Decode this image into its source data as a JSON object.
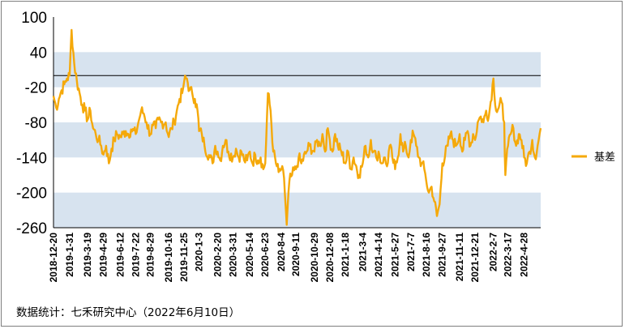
{
  "chart_data": {
    "type": "line",
    "series": [
      {
        "name": "基差",
        "color": "#F5A90A",
        "anchors": [
          [
            "2018-12-20",
            -35
          ],
          [
            "2018-12-27",
            -55
          ],
          [
            "2019-01-03",
            -40
          ],
          [
            "2019-01-10",
            -25
          ],
          [
            "2019-01-17",
            -15
          ],
          [
            "2019-01-24",
            -5
          ],
          [
            "2019-01-31",
            0
          ],
          [
            "2019-02-05",
            78
          ],
          [
            "2019-02-12",
            20
          ],
          [
            "2019-02-19",
            -10
          ],
          [
            "2019-02-26",
            -30
          ],
          [
            "2019-03-05",
            -50
          ],
          [
            "2019-03-12",
            -60
          ],
          [
            "2019-03-19",
            -75
          ],
          [
            "2019-03-26",
            -60
          ],
          [
            "2019-04-02",
            -90
          ],
          [
            "2019-04-09",
            -100
          ],
          [
            "2019-04-16",
            -110
          ],
          [
            "2019-04-23",
            -120
          ],
          [
            "2019-04-29",
            -135
          ],
          [
            "2019-05-06",
            -120
          ],
          [
            "2019-05-13",
            -150
          ],
          [
            "2019-05-20",
            -125
          ],
          [
            "2019-05-27",
            -110
          ],
          [
            "2019-06-03",
            -100
          ],
          [
            "2019-06-12",
            -105
          ],
          [
            "2019-06-19",
            -100
          ],
          [
            "2019-06-26",
            -95
          ],
          [
            "2019-07-03",
            -100
          ],
          [
            "2019-07-10",
            -92
          ],
          [
            "2019-07-22",
            -100
          ],
          [
            "2019-07-29",
            -80
          ],
          [
            "2019-08-05",
            -60
          ],
          [
            "2019-08-12",
            -65
          ],
          [
            "2019-08-19",
            -80
          ],
          [
            "2019-08-29",
            -100
          ],
          [
            "2019-09-05",
            -85
          ],
          [
            "2019-09-12",
            -90
          ],
          [
            "2019-09-19",
            -75
          ],
          [
            "2019-09-26",
            -80
          ],
          [
            "2019-10-08",
            -80
          ],
          [
            "2019-10-16",
            -105
          ],
          [
            "2019-10-23",
            -90
          ],
          [
            "2019-10-30",
            -80
          ],
          [
            "2019-11-06",
            -60
          ],
          [
            "2019-11-13",
            -40
          ],
          [
            "2019-11-20",
            -30
          ],
          [
            "2019-11-25",
            -10
          ],
          [
            "2019-12-02",
            -5
          ],
          [
            "2019-12-09",
            -25
          ],
          [
            "2019-12-16",
            -30
          ],
          [
            "2019-12-23",
            -40
          ],
          [
            "2019-12-30",
            -60
          ],
          [
            "2020-01-03",
            -95
          ],
          [
            "2020-01-10",
            -100
          ],
          [
            "2020-01-17",
            -120
          ],
          [
            "2020-01-31",
            -140
          ],
          [
            "2020-02-07",
            -150
          ],
          [
            "2020-02-14",
            -120
          ],
          [
            "2020-02-20",
            -130
          ],
          [
            "2020-02-27",
            -145
          ],
          [
            "2020-03-05",
            -120
          ],
          [
            "2020-03-12",
            -110
          ],
          [
            "2020-03-19",
            -130
          ],
          [
            "2020-03-31",
            -140
          ],
          [
            "2020-04-08",
            -125
          ],
          [
            "2020-04-15",
            -140
          ],
          [
            "2020-04-22",
            -130
          ],
          [
            "2020-04-29",
            -145
          ],
          [
            "2020-05-07",
            -145
          ],
          [
            "2020-05-14",
            -130
          ],
          [
            "2020-05-21",
            -150
          ],
          [
            "2020-05-28",
            -135
          ],
          [
            "2020-06-04",
            -145
          ],
          [
            "2020-06-11",
            -140
          ],
          [
            "2020-06-18",
            -160
          ],
          [
            "2020-06-23",
            -150
          ],
          [
            "2020-06-30",
            -30
          ],
          [
            "2020-07-07",
            -60
          ],
          [
            "2020-07-14",
            -130
          ],
          [
            "2020-07-21",
            -150
          ],
          [
            "2020-07-28",
            -165
          ],
          [
            "2020-08-04",
            -160
          ],
          [
            "2020-08-11",
            -175
          ],
          [
            "2020-08-18",
            -255
          ],
          [
            "2020-08-25",
            -180
          ],
          [
            "2020-09-01",
            -170
          ],
          [
            "2020-09-11",
            -160
          ],
          [
            "2020-09-18",
            -140
          ],
          [
            "2020-09-25",
            -150
          ],
          [
            "2020-10-09",
            -130
          ],
          [
            "2020-10-16",
            -120
          ],
          [
            "2020-10-29",
            -130
          ],
          [
            "2020-11-05",
            -110
          ],
          [
            "2020-11-12",
            -120
          ],
          [
            "2020-11-19",
            -100
          ],
          [
            "2020-11-26",
            -130
          ],
          [
            "2020-12-03",
            -90
          ],
          [
            "2020-12-08",
            -110
          ],
          [
            "2020-12-15",
            -130
          ],
          [
            "2020-12-22",
            -100
          ],
          [
            "2020-12-29",
            -120
          ],
          [
            "2021-01-07",
            -130
          ],
          [
            "2021-01-18",
            -150
          ],
          [
            "2021-01-25",
            -130
          ],
          [
            "2021-02-01",
            -160
          ],
          [
            "2021-02-08",
            -140
          ],
          [
            "2021-02-22",
            -170
          ],
          [
            "2021-03-04",
            -150
          ],
          [
            "2021-03-11",
            -120
          ],
          [
            "2021-03-18",
            -140
          ],
          [
            "2021-03-25",
            -110
          ],
          [
            "2021-04-01",
            -130
          ],
          [
            "2021-04-08",
            -140
          ],
          [
            "2021-04-14",
            -130
          ],
          [
            "2021-04-21",
            -150
          ],
          [
            "2021-04-28",
            -140
          ],
          [
            "2021-05-06",
            -155
          ],
          [
            "2021-05-13",
            -120
          ],
          [
            "2021-05-20",
            -140
          ],
          [
            "2021-05-27",
            -160
          ],
          [
            "2021-06-03",
            -140
          ],
          [
            "2021-06-10",
            -100
          ],
          [
            "2021-06-17",
            -130
          ],
          [
            "2021-06-24",
            -120
          ],
          [
            "2021-07-01",
            -140
          ],
          [
            "2021-07-07",
            -110
          ],
          [
            "2021-07-14",
            -100
          ],
          [
            "2021-07-21",
            -120
          ],
          [
            "2021-07-28",
            -140
          ],
          [
            "2021-08-04",
            -150
          ],
          [
            "2021-08-11",
            -160
          ],
          [
            "2021-08-16",
            -180
          ],
          [
            "2021-08-23",
            -200
          ],
          [
            "2021-08-30",
            -190
          ],
          [
            "2021-09-06",
            -215
          ],
          [
            "2021-09-13",
            -240
          ],
          [
            "2021-09-20",
            -220
          ],
          [
            "2021-09-27",
            -150
          ],
          [
            "2021-10-11",
            -120
          ],
          [
            "2021-10-18",
            -100
          ],
          [
            "2021-10-25",
            -110
          ],
          [
            "2021-11-01",
            -120
          ],
          [
            "2021-11-11",
            -100
          ],
          [
            "2021-11-18",
            -130
          ],
          [
            "2021-11-25",
            -110
          ],
          [
            "2021-12-02",
            -95
          ],
          [
            "2021-12-09",
            -120
          ],
          [
            "2021-12-16",
            -100
          ],
          [
            "2021-12-21",
            -110
          ],
          [
            "2021-12-28",
            -80
          ],
          [
            "2022-01-05",
            -70
          ],
          [
            "2022-01-12",
            -80
          ],
          [
            "2022-01-19",
            -60
          ],
          [
            "2022-01-26",
            -70
          ],
          [
            "2022-02-07",
            -5
          ],
          [
            "2022-02-14",
            -60
          ],
          [
            "2022-02-21",
            -55
          ],
          [
            "2022-02-28",
            -45
          ],
          [
            "2022-03-07",
            -80
          ],
          [
            "2022-03-10",
            -170
          ],
          [
            "2022-03-17",
            -120
          ],
          [
            "2022-03-24",
            -100
          ],
          [
            "2022-03-31",
            -90
          ],
          [
            "2022-04-07",
            -120
          ],
          [
            "2022-04-14",
            -100
          ],
          [
            "2022-04-21",
            -110
          ],
          [
            "2022-04-28",
            -140
          ],
          [
            "2022-05-05",
            -150
          ],
          [
            "2022-05-12",
            -130
          ],
          [
            "2022-05-19",
            -110
          ],
          [
            "2022-05-26",
            -140
          ],
          [
            "2022-06-02",
            -120
          ],
          [
            "2022-06-10",
            -90
          ]
        ]
      }
    ],
    "x_tick_labels": [
      "2018-12-20",
      "2019-1-31",
      "2019-3-19",
      "2019-4-29",
      "2019-6-12",
      "2019-7-22",
      "2019-8-29",
      "2019-10-16",
      "2019-11-25",
      "2020-1-3",
      "2020-2-20",
      "2020-3-31",
      "2020-5-14",
      "2020-6-23",
      "2020-8-4",
      "2020-9-11",
      "2020-10-29",
      "2020-12-08",
      "2021-1-18",
      "2021-3-4",
      "2021-4-14",
      "2021-5-27",
      "2021-7-7",
      "2021-8-16",
      "2021-9-27",
      "2021-11-11",
      "2021-12-21",
      "2022-2-7",
      "2022-3-17",
      "2022-4-28"
    ],
    "x_tick_dates": [
      "2018-12-20",
      "2019-01-31",
      "2019-03-19",
      "2019-04-29",
      "2019-06-12",
      "2019-07-22",
      "2019-08-29",
      "2019-10-16",
      "2019-11-25",
      "2020-01-03",
      "2020-02-20",
      "2020-03-31",
      "2020-05-14",
      "2020-06-23",
      "2020-08-04",
      "2020-09-11",
      "2020-10-29",
      "2020-12-08",
      "2021-01-18",
      "2021-03-04",
      "2021-04-14",
      "2021-05-27",
      "2021-07-07",
      "2021-08-16",
      "2021-09-27",
      "2021-11-11",
      "2021-12-21",
      "2022-02-07",
      "2022-03-17",
      "2022-04-28"
    ],
    "x_range": [
      "2018-12-20",
      "2022-06-10"
    ],
    "y_ticks": [
      100,
      40,
      -20,
      -80,
      -140,
      -200,
      -260
    ],
    "ylim": [
      -260,
      100
    ],
    "y_tick_labels": [
      "100",
      "40",
      "-20",
      "-80",
      "-140",
      "-200",
      "-260"
    ],
    "bands": [
      [
        -20,
        40
      ],
      [
        -140,
        -80
      ],
      [
        -260,
        -200
      ]
    ],
    "band_color": "#D7E3EF",
    "reference_line": 0,
    "reference_line_color": "#000000",
    "legend": {
      "position": "right",
      "label": "基差"
    },
    "title": "",
    "xlabel": "",
    "ylabel": ""
  },
  "source_note": "数据统计：七禾研究中心（2022年6月10日）"
}
